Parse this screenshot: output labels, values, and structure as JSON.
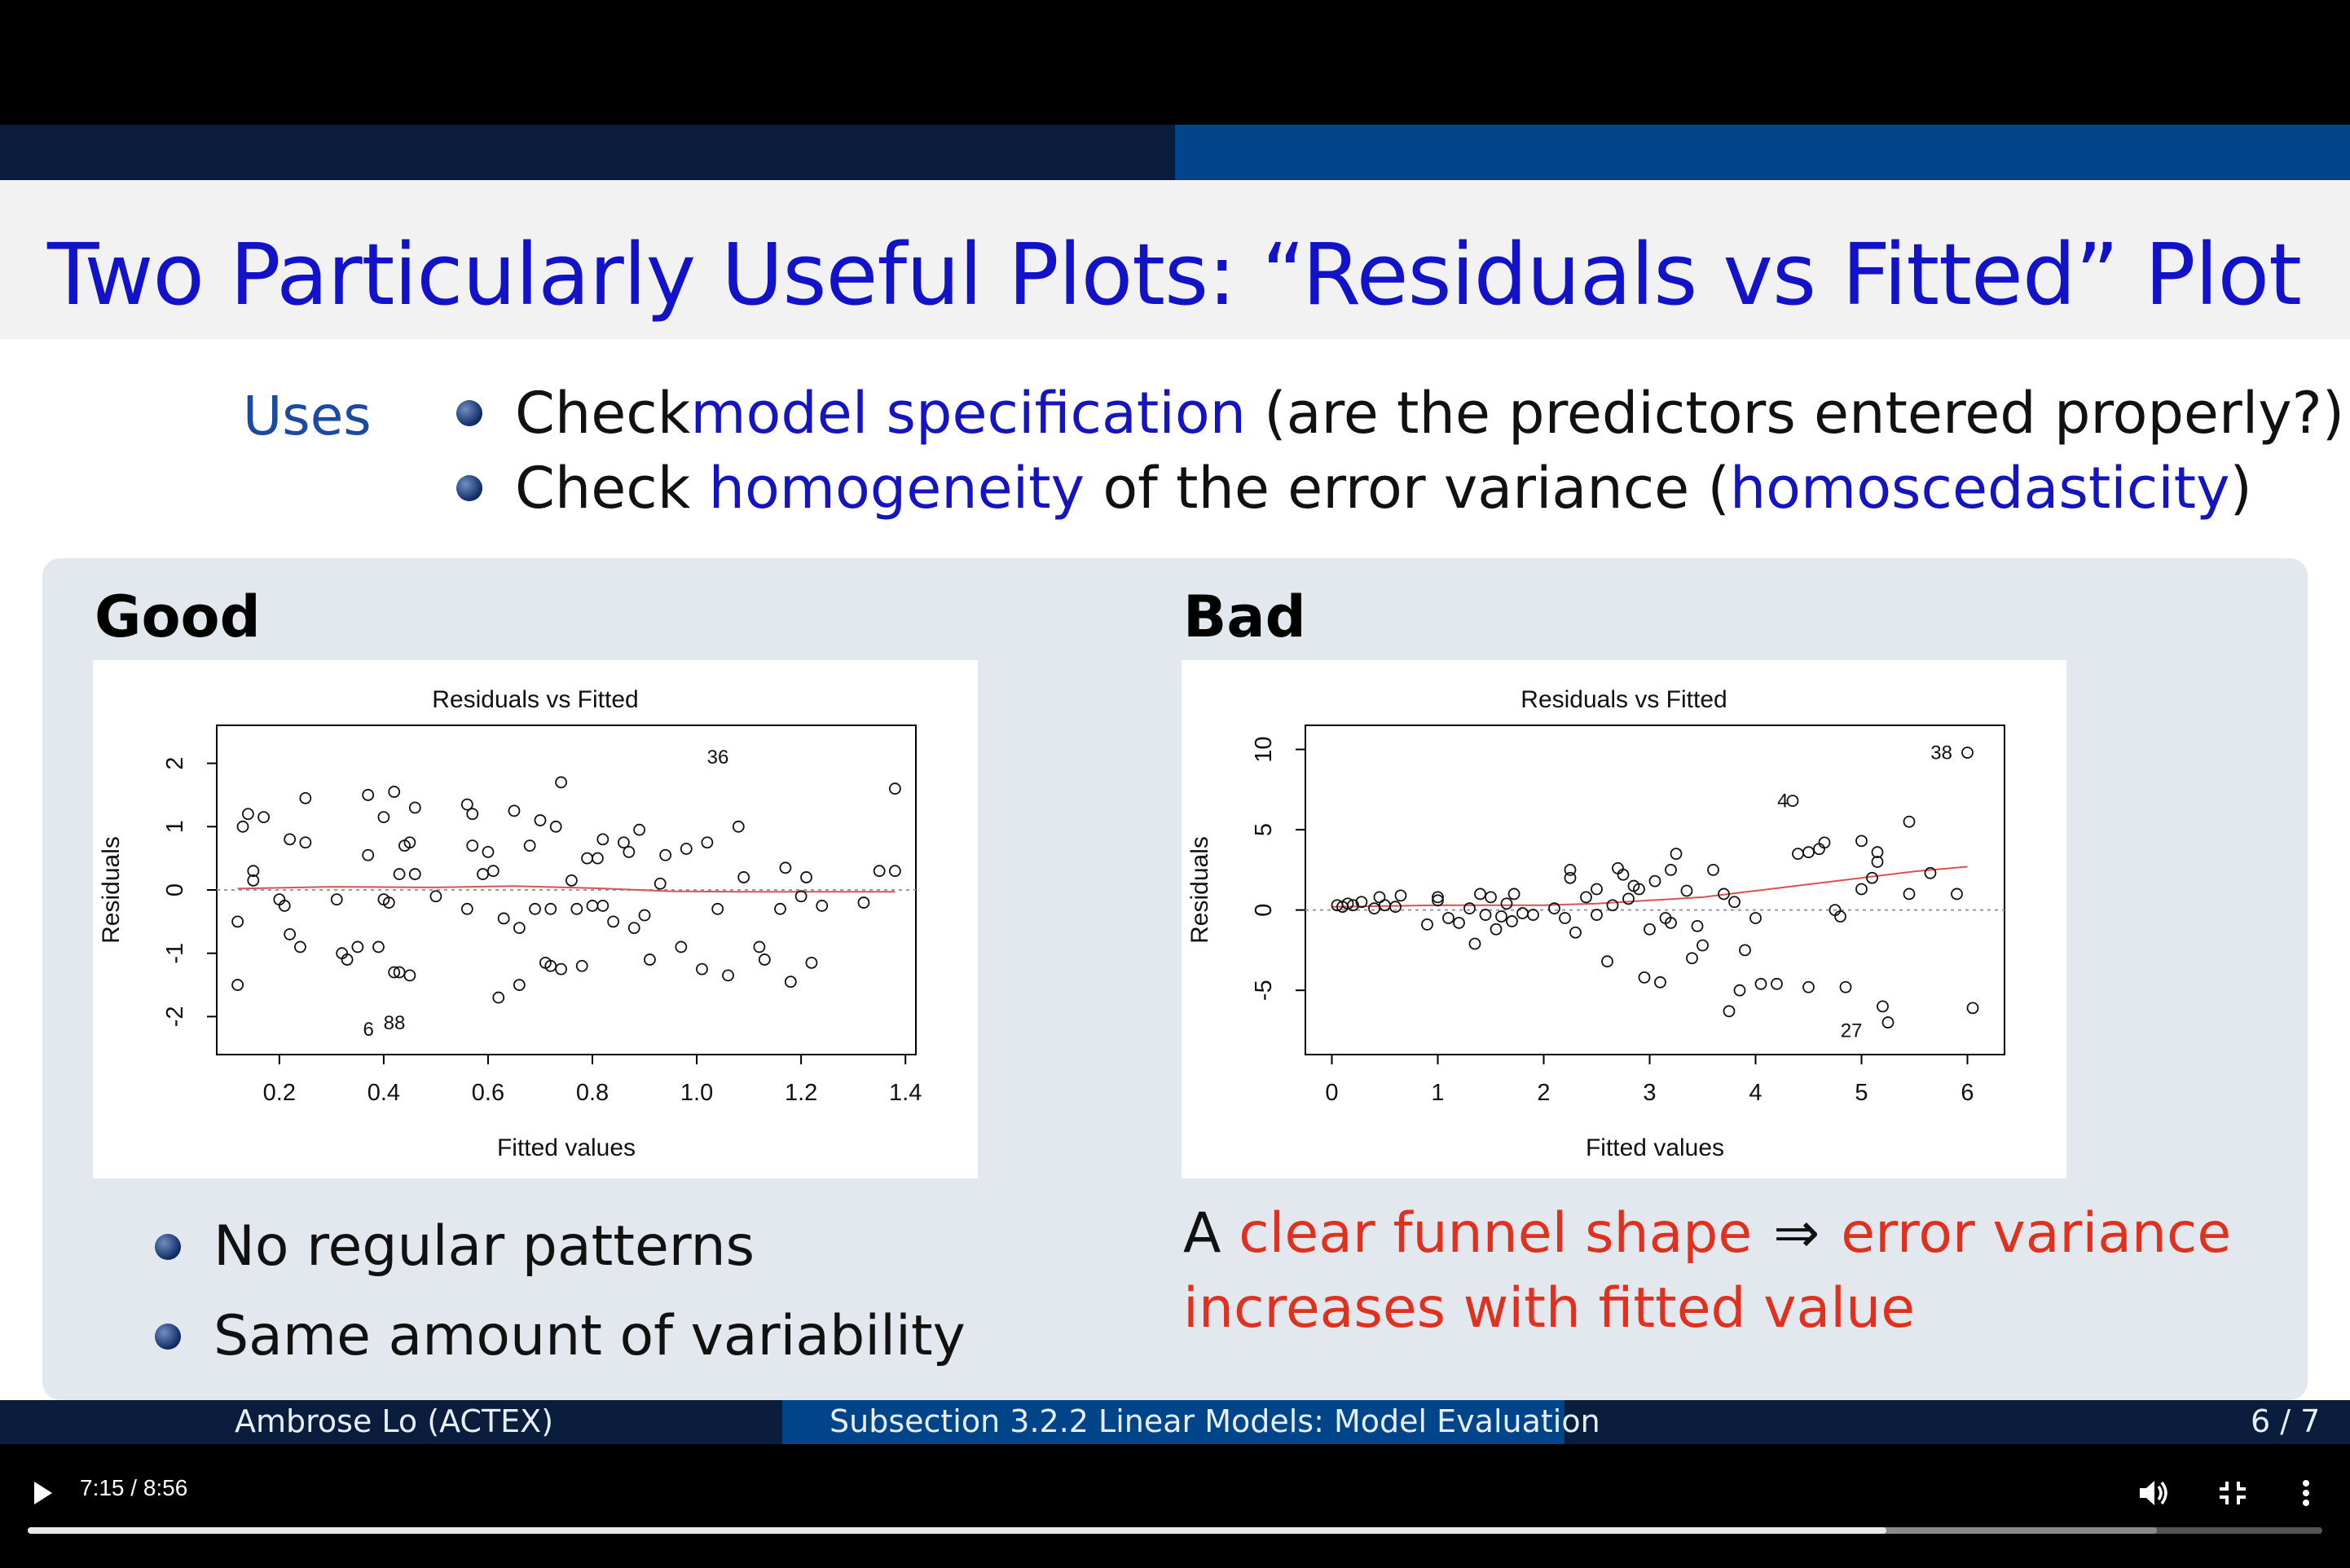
{
  "slide": {
    "title": "Two Particularly Useful Plots: “Residuals vs Fitted” Plot",
    "uses_label": "Uses",
    "bullet1": {
      "pre": "Check ",
      "highlight": "model specification",
      "post": " (are the predictors entered properly?)"
    },
    "bullet2": {
      "pre": "Check ",
      "highlight": "homogeneity",
      "mid": " of the error variance (",
      "highlight2": "homoscedasticity",
      "post": ")"
    },
    "good": {
      "heading": "Good",
      "bullets": [
        "No regular patterns",
        "Same amount of variability"
      ]
    },
    "bad": {
      "heading": "Bad",
      "caption_a": "A ",
      "caption_b": "clear funnel shape",
      "caption_arrow": "⇒",
      "caption_c": "error variance",
      "caption_d": "increases with fitted value"
    }
  },
  "footer": {
    "author": "Ambrose Lo  (ACTEX)",
    "section": "Subsection 3.2.2 Linear Models: Model Evaluation",
    "page": "6 / 7"
  },
  "player": {
    "time": "7:15 / 8:56",
    "progress_fraction": 0.81,
    "buffered_fraction": 0.928,
    "icons": [
      "play-icon",
      "volume-icon",
      "exit-fullscreen-icon",
      "more-vert-icon"
    ],
    "colors": {
      "accent_blue": "#1515c0",
      "highlight_red": "#e0301e",
      "band_blue": "#00458a",
      "band_dark": "#0a1d3c"
    }
  },
  "chart_data": [
    {
      "type": "scatter",
      "title": "Residuals vs Fitted",
      "xlabel": "Fitted values",
      "ylabel": "Residuals",
      "xlim": [
        0.08,
        1.42
      ],
      "ylim": [
        -2.6,
        2.6
      ],
      "xticks": [
        "0.2",
        "0.4",
        "0.6",
        "0.8",
        "1.0",
        "1.2",
        "1.4"
      ],
      "yticks": [
        "-2",
        "-1",
        "0",
        "1",
        "2"
      ],
      "labels": [
        {
          "text": "36",
          "x": 1.08,
          "y": 2.1
        },
        {
          "text": "6",
          "x": 0.4,
          "y": -2.2
        },
        {
          "text": "88",
          "x": 0.46,
          "y": -2.1
        }
      ],
      "points": [
        [
          0.12,
          -0.5
        ],
        [
          0.12,
          -1.5
        ],
        [
          0.13,
          1.0
        ],
        [
          0.14,
          1.2
        ],
        [
          0.15,
          0.3
        ],
        [
          0.15,
          0.15
        ],
        [
          0.17,
          1.15
        ],
        [
          0.2,
          -0.15
        ],
        [
          0.21,
          -0.25
        ],
        [
          0.22,
          -0.7
        ],
        [
          0.22,
          0.8
        ],
        [
          0.24,
          -0.9
        ],
        [
          0.25,
          0.75
        ],
        [
          0.25,
          1.45
        ],
        [
          0.31,
          -0.15
        ],
        [
          0.32,
          -1.0
        ],
        [
          0.33,
          -1.1
        ],
        [
          0.35,
          -0.9
        ],
        [
          0.37,
          0.55
        ],
        [
          0.37,
          1.5
        ],
        [
          0.39,
          -0.9
        ],
        [
          0.4,
          -0.15
        ],
        [
          0.4,
          1.15
        ],
        [
          0.41,
          -0.2
        ],
        [
          0.42,
          1.55
        ],
        [
          0.42,
          -1.3
        ],
        [
          0.43,
          0.25
        ],
        [
          0.43,
          -1.3
        ],
        [
          0.44,
          0.7
        ],
        [
          0.45,
          -1.35
        ],
        [
          0.45,
          0.75
        ],
        [
          0.46,
          1.3
        ],
        [
          0.46,
          0.25
        ],
        [
          0.5,
          -0.1
        ],
        [
          0.56,
          1.35
        ],
        [
          0.56,
          -0.3
        ],
        [
          0.57,
          1.2
        ],
        [
          0.57,
          0.7
        ],
        [
          0.59,
          0.25
        ],
        [
          0.6,
          0.6
        ],
        [
          0.61,
          0.3
        ],
        [
          0.62,
          -1.7
        ],
        [
          0.63,
          -0.45
        ],
        [
          0.65,
          1.25
        ],
        [
          0.66,
          -0.6
        ],
        [
          0.66,
          -1.5
        ],
        [
          0.68,
          0.7
        ],
        [
          0.69,
          -0.3
        ],
        [
          0.7,
          1.1
        ],
        [
          0.71,
          -1.15
        ],
        [
          0.72,
          -0.3
        ],
        [
          0.72,
          -1.2
        ],
        [
          0.73,
          1.0
        ],
        [
          0.74,
          1.7
        ],
        [
          0.74,
          -1.25
        ],
        [
          0.76,
          0.15
        ],
        [
          0.77,
          -0.3
        ],
        [
          0.78,
          -1.2
        ],
        [
          0.79,
          0.5
        ],
        [
          0.8,
          -0.25
        ],
        [
          0.81,
          0.5
        ],
        [
          0.82,
          -0.25
        ],
        [
          0.82,
          0.8
        ],
        [
          0.84,
          -0.5
        ],
        [
          0.86,
          0.75
        ],
        [
          0.87,
          0.6
        ],
        [
          0.88,
          -0.6
        ],
        [
          0.89,
          0.95
        ],
        [
          0.9,
          -0.4
        ],
        [
          0.91,
          -1.1
        ],
        [
          0.93,
          0.1
        ],
        [
          0.94,
          0.55
        ],
        [
          0.97,
          -0.9
        ],
        [
          0.98,
          0.65
        ],
        [
          1.01,
          -1.25
        ],
        [
          1.02,
          0.75
        ],
        [
          1.04,
          -0.3
        ],
        [
          1.06,
          -1.35
        ],
        [
          1.08,
          1.0
        ],
        [
          1.09,
          0.2
        ],
        [
          1.12,
          -0.9
        ],
        [
          1.13,
          -1.1
        ],
        [
          1.16,
          -0.3
        ],
        [
          1.17,
          0.35
        ],
        [
          1.18,
          -1.45
        ],
        [
          1.2,
          -0.1
        ],
        [
          1.21,
          0.2
        ],
        [
          1.22,
          -1.15
        ],
        [
          1.24,
          -0.25
        ],
        [
          1.32,
          -0.2
        ],
        [
          1.35,
          0.3
        ],
        [
          1.38,
          0.3
        ],
        [
          1.38,
          1.6
        ]
      ],
      "smoother": [
        [
          0.12,
          0.02
        ],
        [
          0.3,
          0.05
        ],
        [
          0.5,
          0.04
        ],
        [
          0.65,
          0.06
        ],
        [
          0.8,
          0.03
        ],
        [
          0.95,
          -0.02
        ],
        [
          1.1,
          -0.03
        ],
        [
          1.38,
          -0.03
        ]
      ]
    },
    {
      "type": "scatter",
      "title": "Residuals vs Fitted",
      "xlabel": "Fitted values",
      "ylabel": "Residuals",
      "xlim": [
        -0.25,
        6.35
      ],
      "ylim": [
        -9,
        11.5
      ],
      "xticks": [
        "0",
        "1",
        "2",
        "3",
        "4",
        "5",
        "6"
      ],
      "yticks": [
        "-5",
        "0",
        "5",
        "10"
      ],
      "labels": [
        {
          "text": "38",
          "x": 5.95,
          "y": 9.8
        },
        {
          "text": "4",
          "x": 4.4,
          "y": 6.8
        },
        {
          "text": "27",
          "x": 5.1,
          "y": -7.5
        }
      ],
      "points": [
        [
          0.05,
          0.3
        ],
        [
          0.1,
          0.2
        ],
        [
          0.15,
          0.4
        ],
        [
          0.2,
          0.3
        ],
        [
          0.28,
          0.5
        ],
        [
          0.4,
          0.1
        ],
        [
          0.45,
          0.8
        ],
        [
          0.5,
          0.3
        ],
        [
          0.6,
          0.2
        ],
        [
          0.65,
          0.9
        ],
        [
          0.9,
          -0.9
        ],
        [
          1.0,
          0.8
        ],
        [
          1.0,
          0.6
        ],
        [
          1.1,
          -0.5
        ],
        [
          1.2,
          -0.8
        ],
        [
          1.3,
          0.1
        ],
        [
          1.35,
          -2.1
        ],
        [
          1.4,
          1.0
        ],
        [
          1.45,
          -0.3
        ],
        [
          1.5,
          0.8
        ],
        [
          1.55,
          -1.2
        ],
        [
          1.6,
          -0.4
        ],
        [
          1.65,
          0.4
        ],
        [
          1.7,
          -0.7
        ],
        [
          1.72,
          1.0
        ],
        [
          1.8,
          -0.2
        ],
        [
          1.9,
          -0.3
        ],
        [
          2.1,
          0.1
        ],
        [
          2.2,
          -0.5
        ],
        [
          2.25,
          2.5
        ],
        [
          2.25,
          2.0
        ],
        [
          2.3,
          -1.4
        ],
        [
          2.4,
          0.8
        ],
        [
          2.5,
          1.3
        ],
        [
          2.5,
          -0.3
        ],
        [
          2.6,
          -3.2
        ],
        [
          2.65,
          0.3
        ],
        [
          2.7,
          2.6
        ],
        [
          2.75,
          2.2
        ],
        [
          2.8,
          0.7
        ],
        [
          2.85,
          1.5
        ],
        [
          2.9,
          1.3
        ],
        [
          2.95,
          -4.2
        ],
        [
          3.0,
          -1.2
        ],
        [
          3.05,
          1.8
        ],
        [
          3.1,
          -4.5
        ],
        [
          3.15,
          -0.5
        ],
        [
          3.2,
          -0.8
        ],
        [
          3.2,
          2.5
        ],
        [
          3.25,
          3.5
        ],
        [
          3.35,
          1.2
        ],
        [
          3.4,
          -3.0
        ],
        [
          3.45,
          -1.0
        ],
        [
          3.5,
          -2.2
        ],
        [
          3.6,
          2.5
        ],
        [
          3.7,
          1.0
        ],
        [
          3.75,
          -6.3
        ],
        [
          3.8,
          0.5
        ],
        [
          3.85,
          -5.0
        ],
        [
          3.9,
          -2.5
        ],
        [
          4.0,
          -0.5
        ],
        [
          4.05,
          -4.6
        ],
        [
          4.2,
          -4.6
        ],
        [
          4.35,
          6.8
        ],
        [
          4.4,
          3.5
        ],
        [
          4.5,
          3.6
        ],
        [
          4.5,
          -4.8
        ],
        [
          4.6,
          3.8
        ],
        [
          4.65,
          4.2
        ],
        [
          4.75,
          0.0
        ],
        [
          4.8,
          -0.4
        ],
        [
          4.85,
          -4.8
        ],
        [
          5.0,
          4.3
        ],
        [
          5.0,
          1.3
        ],
        [
          5.1,
          2.0
        ],
        [
          5.15,
          3.0
        ],
        [
          5.15,
          3.6
        ],
        [
          5.2,
          -6.0
        ],
        [
          5.25,
          -7.0
        ],
        [
          5.45,
          5.5
        ],
        [
          5.45,
          1.0
        ],
        [
          5.65,
          2.3
        ],
        [
          5.9,
          1.0
        ],
        [
          6.0,
          9.8
        ],
        [
          6.05,
          -6.1
        ]
      ],
      "smoother": [
        [
          0.0,
          0.2
        ],
        [
          1.0,
          0.3
        ],
        [
          2.0,
          0.3
        ],
        [
          2.5,
          0.4
        ],
        [
          3.0,
          0.6
        ],
        [
          3.5,
          0.8
        ],
        [
          4.0,
          1.2
        ],
        [
          4.5,
          1.6
        ],
        [
          5.0,
          2.0
        ],
        [
          5.5,
          2.4
        ],
        [
          6.0,
          2.7
        ]
      ]
    }
  ]
}
